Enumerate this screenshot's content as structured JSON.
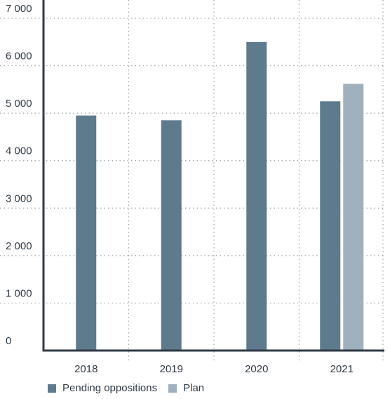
{
  "chart_data": {
    "type": "bar",
    "categories": [
      "2018",
      "2019",
      "2020",
      "2021"
    ],
    "series": [
      {
        "name": "Pending oppositions",
        "values": [
          4950,
          4850,
          6500,
          5250
        ],
        "color": "#5e7a8d"
      },
      {
        "name": "Plan",
        "values": [
          null,
          null,
          null,
          5620
        ],
        "color": "#a0b0bc"
      }
    ],
    "ylim": [
      0,
      7000
    ],
    "yticks": [
      0,
      1000,
      2000,
      3000,
      4000,
      5000,
      6000,
      7000
    ],
    "ytick_labels": [
      "0",
      "1 000",
      "2 000",
      "3 000",
      "4 000",
      "5 000",
      "6 000",
      "7 000"
    ],
    "grid": true,
    "legend_position": "bottom-left"
  }
}
